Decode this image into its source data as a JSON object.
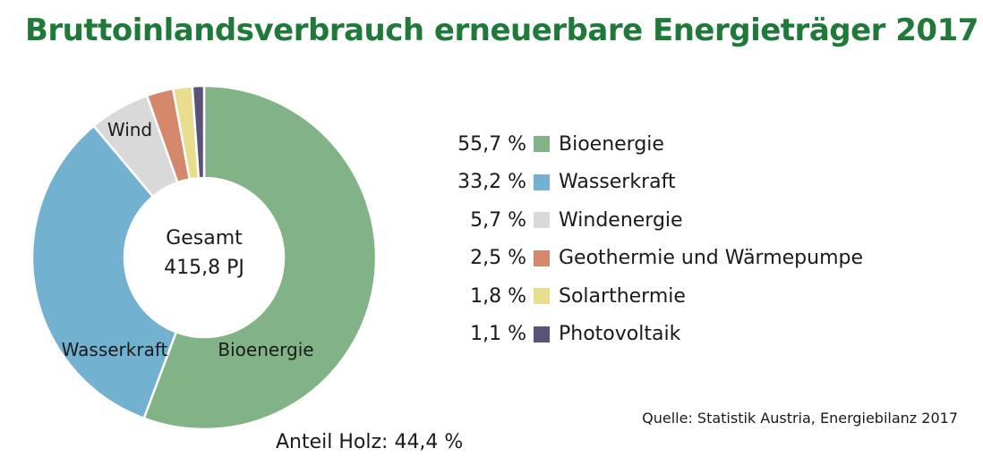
{
  "chart_data": {
    "type": "pie",
    "donut": true,
    "title": "Bruttoinlandsverbrauch erneuerbare Energieträger 2017",
    "center_label": [
      "Gesamt",
      "415,8 PJ"
    ],
    "slices": [
      {
        "name": "Bioenergie",
        "value": 55.7,
        "label": "55,7 %",
        "slice_label": "Bioenergie",
        "color": "#82b387"
      },
      {
        "name": "Wasserkraft",
        "value": 33.2,
        "label": "33,2 %",
        "slice_label": "Wasserkraft",
        "color": "#72b1cf"
      },
      {
        "name": "Windenergie",
        "value": 5.7,
        "label": "5,7 %",
        "slice_label": "Wind",
        "color": "#d9d9da"
      },
      {
        "name": "Geothermie und Wärmepumpe",
        "value": 2.5,
        "label": "2,5 %",
        "color": "#d4876a"
      },
      {
        "name": "Solarthermie",
        "value": 1.8,
        "label": "1,8 %",
        "color": "#e8dc8e"
      },
      {
        "name": "Photovoltaik",
        "value": 1.1,
        "label": "1,1 %",
        "color": "#5a5277"
      }
    ],
    "legend_position": "right",
    "annotation": "Anteil Holz: 44,4 %",
    "source": "Quelle: Statistik Austria, Energiebilanz 2017"
  }
}
